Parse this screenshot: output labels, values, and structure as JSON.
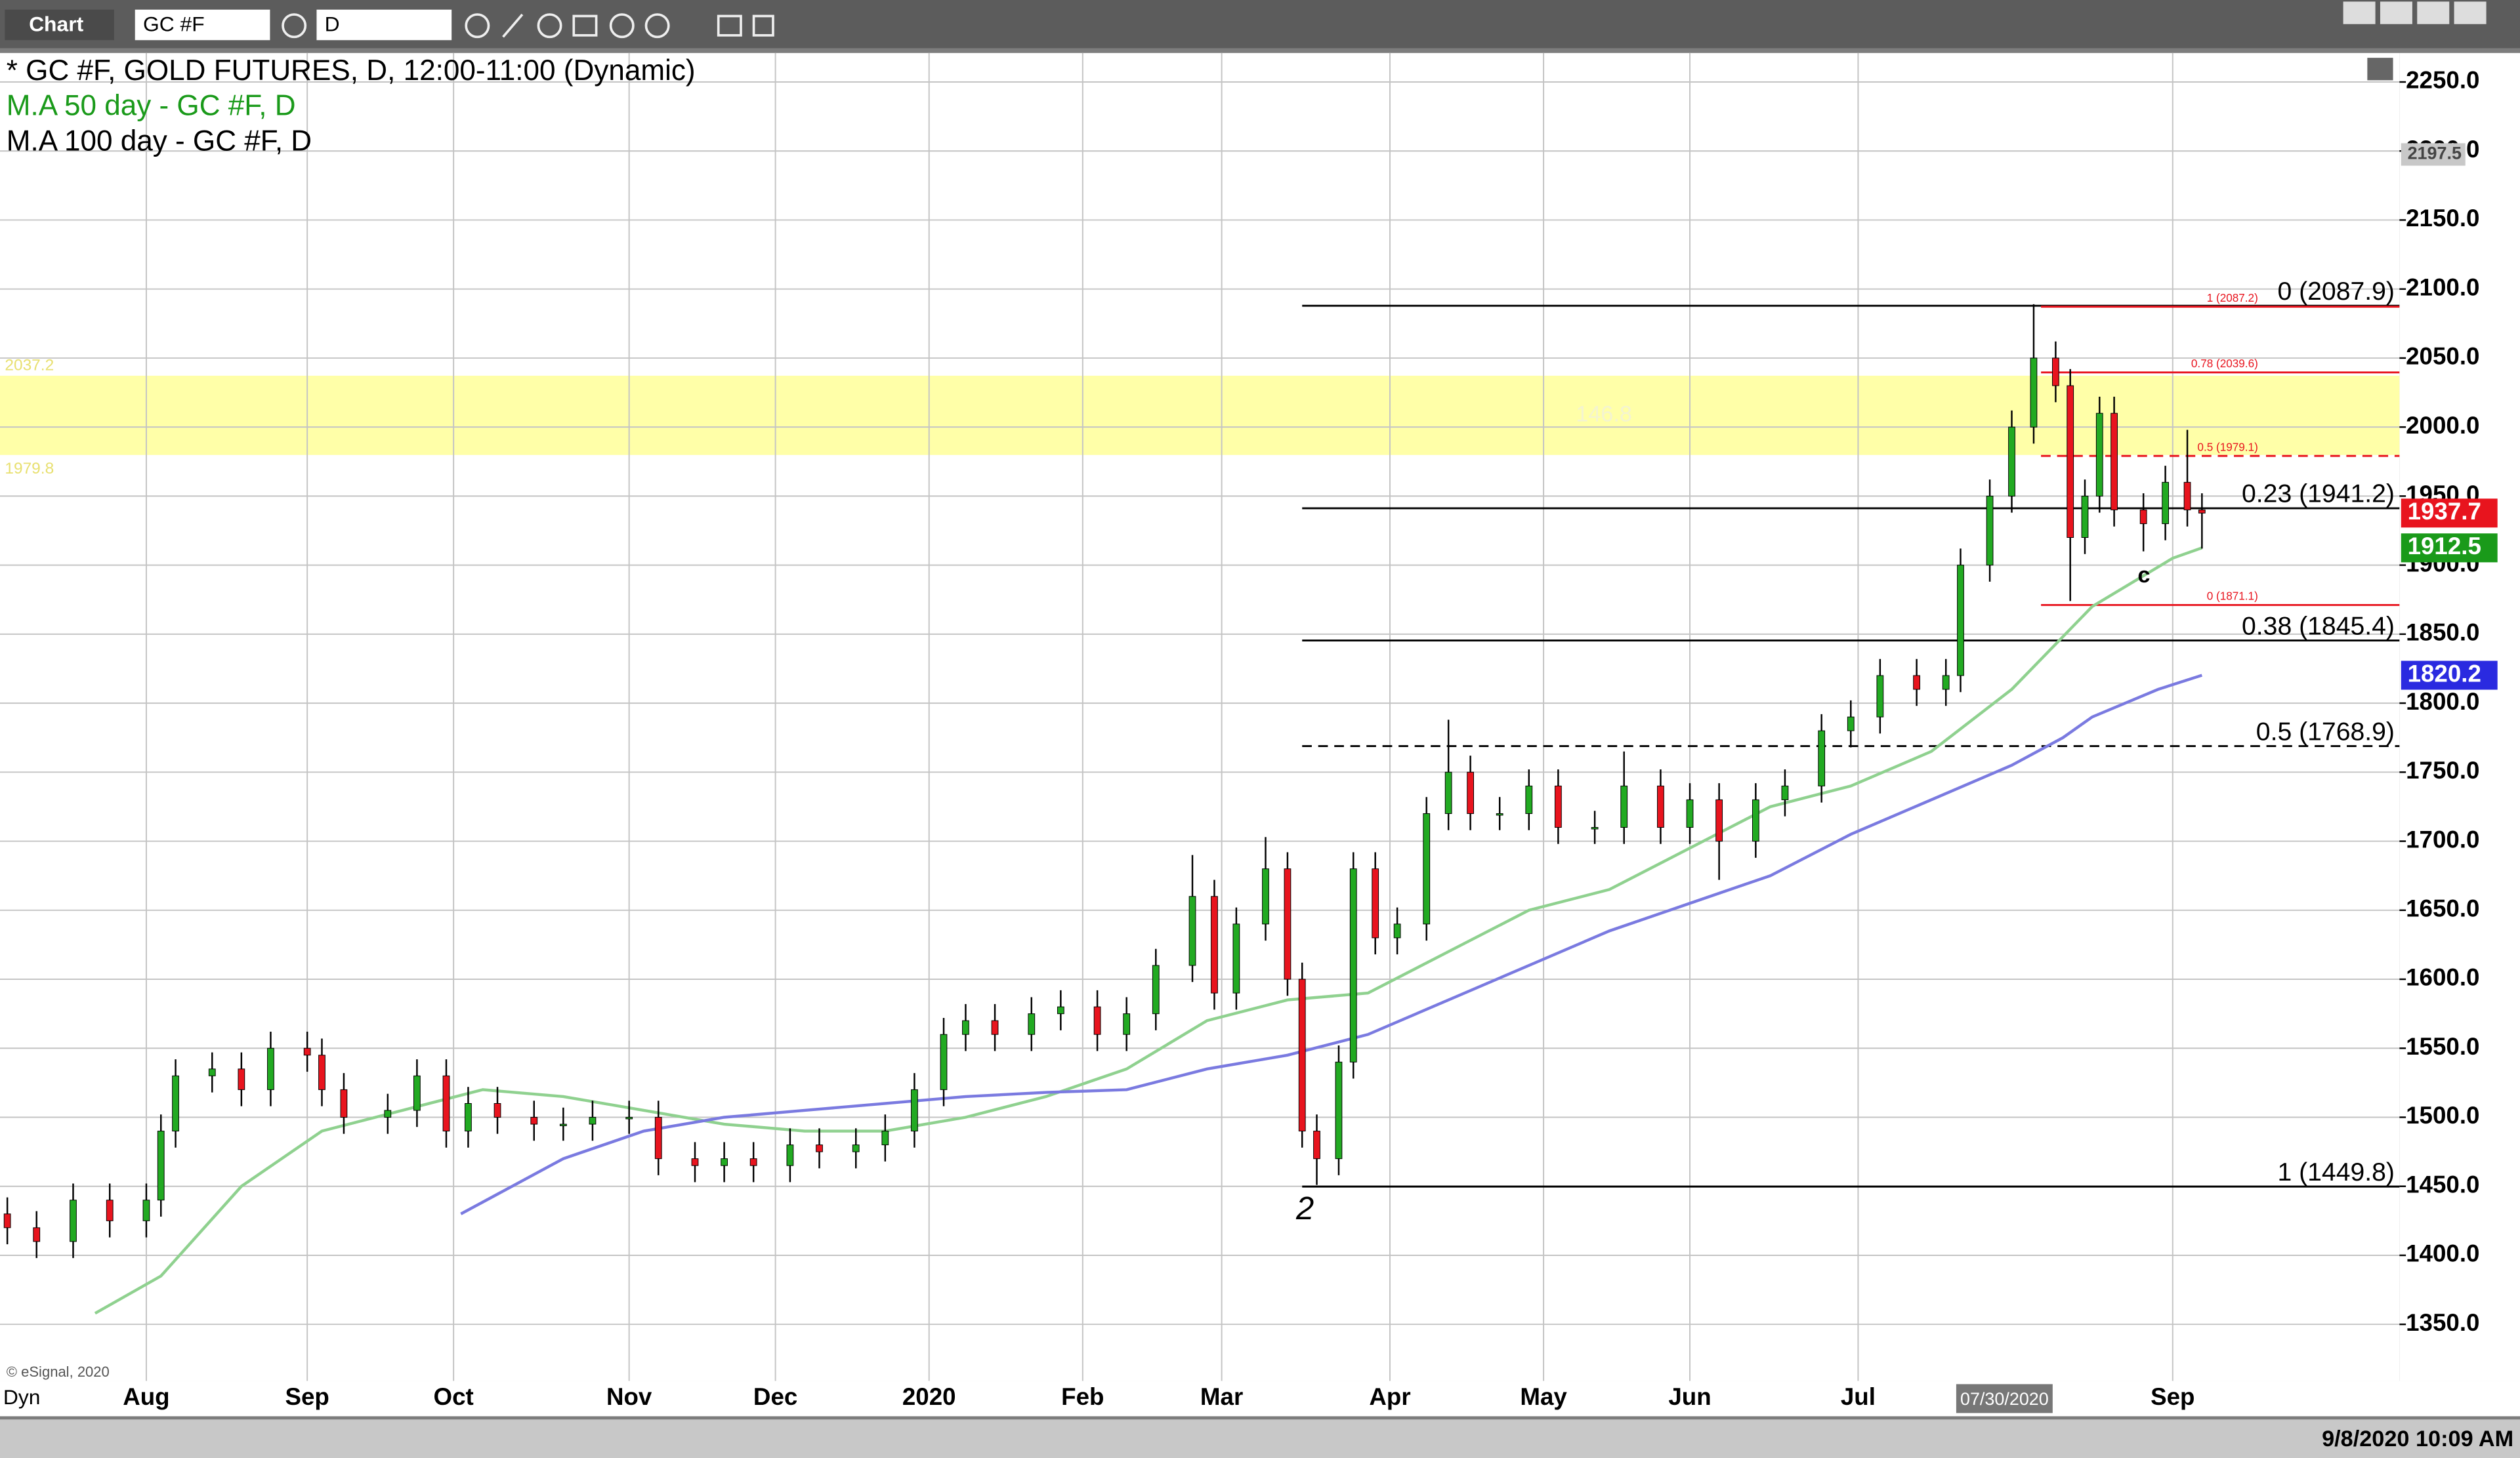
{
  "toolbar": {
    "app": "Chart",
    "symbol": "GC #F",
    "interval": "D"
  },
  "footer": {
    "mode": "Dyn",
    "timestamp": "9/8/2020 10:09 AM",
    "copyright": "© eSignal, 2020"
  },
  "chart_data": {
    "type": "candlestick",
    "title": "* GC #F, GOLD FUTURES, D, 12:00-11:00 (Dynamic)",
    "xlim": [
      0,
      328
    ],
    "ylim": [
      1309,
      2271
    ],
    "xticks": [
      {
        "value": 20,
        "label": "Aug"
      },
      {
        "value": 42,
        "label": "Sep"
      },
      {
        "value": 62,
        "label": "Oct"
      },
      {
        "value": 86,
        "label": "Nov"
      },
      {
        "value": 106,
        "label": "Dec"
      },
      {
        "value": 127,
        "label": "2020"
      },
      {
        "value": 148,
        "label": "Feb"
      },
      {
        "value": 167,
        "label": "Mar"
      },
      {
        "value": 190,
        "label": "Apr"
      },
      {
        "value": 211,
        "label": "May"
      },
      {
        "value": 231,
        "label": "Jun"
      },
      {
        "value": 254,
        "label": "Jul"
      },
      {
        "value": 297,
        "label": "Sep"
      }
    ],
    "cursor_label": {
      "value": 274,
      "label": "07/30/2020"
    },
    "yticks": [
      {
        "value": 1350,
        "label": "1350.0"
      },
      {
        "value": 1400,
        "label": "1400.0"
      },
      {
        "value": 1450,
        "label": "1450.0"
      },
      {
        "value": 1500,
        "label": "1500.0"
      },
      {
        "value": 1550,
        "label": "1550.0"
      },
      {
        "value": 1600,
        "label": "1600.0"
      },
      {
        "value": 1650,
        "label": "1650.0"
      },
      {
        "value": 1700,
        "label": "1700.0"
      },
      {
        "value": 1750,
        "label": "1750.0"
      },
      {
        "value": 1800,
        "label": "1800.0"
      },
      {
        "value": 1850,
        "label": "1850.0"
      },
      {
        "value": 1900,
        "label": "1900.0"
      },
      {
        "value": 1950,
        "label": "1950.0"
      },
      {
        "value": 2000,
        "label": "2000.0"
      },
      {
        "value": 2050,
        "label": "2050.0"
      },
      {
        "value": 2100,
        "label": "2100.0"
      },
      {
        "value": 2150,
        "label": "2150.0"
      },
      {
        "value": 2200,
        "label": "2200.0"
      },
      {
        "value": 2250,
        "label": "2250.0"
      }
    ],
    "grid": true,
    "up_color": "#22aa22",
    "down_color": "#e8141e",
    "candles": {
      "x": [
        1,
        5,
        10,
        15,
        20,
        22,
        24,
        29,
        33,
        37,
        42,
        44,
        47,
        53,
        57,
        61,
        64,
        68,
        73,
        77,
        81,
        86,
        90,
        95,
        99,
        103,
        108,
        112,
        117,
        121,
        125,
        129,
        132,
        136,
        141,
        145,
        150,
        154,
        158,
        163,
        166,
        169,
        173,
        176,
        178,
        180,
        183,
        185,
        188,
        191,
        195,
        198,
        201,
        205,
        209,
        213,
        218,
        222,
        227,
        231,
        235,
        240,
        244,
        249,
        253,
        257,
        262,
        266,
        268,
        272,
        275,
        278,
        281,
        283,
        285,
        287,
        289,
        293,
        296,
        299,
        301
      ],
      "open": [
        1430,
        1420,
        1410,
        1440,
        1425,
        1440,
        1490,
        1530,
        1535,
        1520,
        1550,
        1545,
        1520,
        1500,
        1505,
        1530,
        1490,
        1510,
        1500,
        1495,
        1495,
        1500,
        1500,
        1470,
        1465,
        1470,
        1465,
        1480,
        1475,
        1480,
        1490,
        1520,
        1560,
        1570,
        1560,
        1575,
        1580,
        1560,
        1575,
        1610,
        1660,
        1590,
        1640,
        1680,
        1600,
        1490,
        1470,
        1540,
        1680,
        1630,
        1640,
        1720,
        1750,
        1720,
        1720,
        1740,
        1710,
        1710,
        1740,
        1710,
        1730,
        1700,
        1730,
        1740,
        1780,
        1790,
        1820,
        1810,
        1820,
        1900,
        1950,
        2000,
        2050,
        2030,
        1920,
        1950,
        2010,
        1940,
        1930,
        1960,
        1940
      ],
      "high": [
        1442,
        1432,
        1452,
        1452,
        1452,
        1502,
        1542,
        1547,
        1547,
        1562,
        1562,
        1557,
        1532,
        1517,
        1542,
        1542,
        1522,
        1522,
        1512,
        1507,
        1512,
        1512,
        1512,
        1482,
        1482,
        1482,
        1492,
        1492,
        1492,
        1502,
        1532,
        1572,
        1582,
        1582,
        1587,
        1592,
        1592,
        1587,
        1622,
        1690,
        1672,
        1652,
        1703,
        1692,
        1612,
        1502,
        1552,
        1692,
        1692,
        1652,
        1732,
        1788,
        1762,
        1732,
        1752,
        1752,
        1722,
        1765,
        1752,
        1742,
        1742,
        1742,
        1752,
        1792,
        1802,
        1832,
        1832,
        1832,
        1912,
        1962,
        2012,
        2089,
        2062,
        2042,
        1962,
        2022,
        2022,
        1952,
        1972,
        1998,
        1952
      ],
      "low": [
        1408,
        1398,
        1398,
        1413,
        1413,
        1428,
        1478,
        1518,
        1508,
        1508,
        1533,
        1508,
        1488,
        1488,
        1493,
        1478,
        1478,
        1488,
        1483,
        1483,
        1483,
        1488,
        1458,
        1453,
        1453,
        1453,
        1453,
        1463,
        1463,
        1468,
        1478,
        1508,
        1548,
        1548,
        1548,
        1563,
        1548,
        1548,
        1563,
        1598,
        1578,
        1578,
        1628,
        1588,
        1478,
        1451,
        1458,
        1528,
        1618,
        1618,
        1628,
        1708,
        1708,
        1708,
        1708,
        1698,
        1698,
        1698,
        1698,
        1698,
        1672,
        1688,
        1718,
        1728,
        1768,
        1778,
        1798,
        1798,
        1808,
        1888,
        1938,
        1988,
        2018,
        1874,
        1908,
        1938,
        1928,
        1910,
        1918,
        1928,
        1912
      ],
      "close": [
        1420,
        1410,
        1440,
        1425,
        1440,
        1490,
        1530,
        1535,
        1520,
        1550,
        1545,
        1520,
        1500,
        1505,
        1530,
        1490,
        1510,
        1500,
        1495,
        1495,
        1500,
        1500,
        1470,
        1465,
        1470,
        1465,
        1480,
        1475,
        1480,
        1490,
        1520,
        1560,
        1570,
        1560,
        1575,
        1580,
        1560,
        1575,
        1610,
        1660,
        1590,
        1640,
        1680,
        1600,
        1490,
        1470,
        1540,
        1680,
        1630,
        1640,
        1720,
        1750,
        1720,
        1720,
        1740,
        1710,
        1710,
        1740,
        1710,
        1730,
        1700,
        1730,
        1740,
        1780,
        1790,
        1820,
        1810,
        1820,
        1900,
        1950,
        2000,
        2050,
        2030,
        1920,
        1950,
        2010,
        1940,
        1930,
        1960,
        1940,
        1937.7
      ]
    },
    "lines": [
      {
        "name": "M.A 50 day - GC #F, D",
        "color": "#8fd18f",
        "legend_color": "#1a9a1a",
        "x": [
          13,
          22,
          33,
          44,
          55,
          66,
          77,
          88,
          99,
          110,
          121,
          132,
          143,
          154,
          165,
          176,
          187,
          198,
          209,
          220,
          231,
          242,
          253,
          264,
          275,
          286,
          297,
          301
        ],
        "values": [
          1358,
          1385,
          1450,
          1490,
          1505,
          1520,
          1515,
          1505,
          1495,
          1490,
          1490,
          1500,
          1515,
          1535,
          1570,
          1585,
          1590,
          1620,
          1650,
          1665,
          1695,
          1725,
          1740,
          1765,
          1810,
          1870,
          1905,
          1912.5
        ]
      },
      {
        "name": "M.A 100 day - GC #F, D",
        "color": "#7a7ae0",
        "legend_color": "#000000",
        "x": [
          63,
          77,
          88,
          99,
          110,
          121,
          132,
          143,
          154,
          165,
          176,
          187,
          198,
          209,
          220,
          231,
          242,
          253,
          264,
          275,
          282,
          286,
          295,
          301
        ],
        "values": [
          1430,
          1470,
          1490,
          1500,
          1505,
          1510,
          1515,
          1518,
          1520,
          1535,
          1545,
          1560,
          1585,
          1610,
          1635,
          1655,
          1675,
          1705,
          1730,
          1755,
          1775,
          1790,
          1810,
          1820.2
        ]
      }
    ],
    "band": {
      "top": 2037.2,
      "bottom": 1979.8,
      "label": "146.8",
      "color": "#ffff99"
    },
    "fib_start": 178,
    "fib": [
      {
        "value": 2087.9,
        "label": "0 (2087.9)"
      },
      {
        "value": 1941.2,
        "label": "0.23 (1941.2)"
      },
      {
        "value": 1845.4,
        "label": "0.38 (1845.4)"
      },
      {
        "value": 1768.9,
        "label": "0.5 (1768.9)",
        "dashed": true
      },
      {
        "value": 1449.8,
        "label": "1 (1449.8)"
      }
    ],
    "fib2_start": 279,
    "fib2": [
      {
        "value": 2087.2,
        "label": "1 (2087.2)"
      },
      {
        "value": 2039.6,
        "label": "0.78 (2039.6)"
      },
      {
        "value": 1979.1,
        "label": "0.5 (1979.1)",
        "dashed": true
      },
      {
        "value": 1871.1,
        "label": "0 (1871.1)"
      }
    ],
    "price_tags": [
      {
        "value": 2197.5,
        "color": "#c8c8c8"
      },
      {
        "value": 1937.7,
        "color": "#e8141e"
      },
      {
        "value": 1912.5,
        "color": "#1a9a1a"
      },
      {
        "value": 1820.2,
        "color": "#2a2ae0"
      }
    ],
    "wave_labels": [
      "2",
      "c"
    ]
  }
}
